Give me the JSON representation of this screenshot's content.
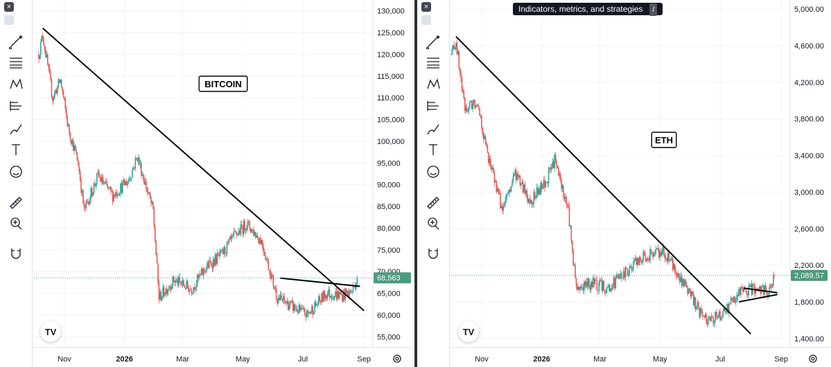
{
  "toolbar": {
    "close_glyph": "×",
    "tools": [
      "fullscreen-icon",
      "trend-line-icon",
      "fib-lines-icon",
      "pattern-icon",
      "forecast-icon",
      "brush-icon",
      "text-icon",
      "emoji-icon",
      "ruler-icon",
      "zoom-in-icon",
      "magnet-icon"
    ]
  },
  "tooltip": {
    "text": "Indicators, metrics, and strategies",
    "key": "/"
  },
  "colors": {
    "up": "#26a69a",
    "down": "#ef5350",
    "grid": "#f0f3fa",
    "axis_text": "#131722",
    "price_tag": "#4e9a7d"
  },
  "chart_data": [
    {
      "type": "candlestick",
      "annotation": "BITCOIN",
      "x_ticks": [
        "Nov",
        "2026",
        "Mar",
        "May",
        "Jul",
        "Sep"
      ],
      "y_ticks": [
        "130,000",
        "125,000",
        "120,000",
        "115,000",
        "110,000",
        "105,000",
        "100,000",
        "95,000",
        "90,000",
        "85,000",
        "80,000",
        "75,000",
        "70,000",
        "65,000",
        "60,000",
        "55,000"
      ],
      "ylim": [
        52500,
        132500
      ],
      "last_price": 68563,
      "last_price_label": "68,563",
      "series_keypoints": [
        [
          "2025-10-06",
          120000
        ],
        [
          "2025-10-10",
          124500
        ],
        [
          "2025-10-20",
          110000
        ],
        [
          "2025-10-28",
          114000
        ],
        [
          "2025-11-05",
          103000
        ],
        [
          "2025-11-15",
          95000
        ],
        [
          "2025-11-21",
          84000
        ],
        [
          "2025-12-05",
          92000
        ],
        [
          "2025-12-20",
          87500
        ],
        [
          "2026-01-05",
          91000
        ],
        [
          "2026-01-14",
          96500
        ],
        [
          "2026-01-30",
          84000
        ],
        [
          "2026-02-05",
          64000
        ],
        [
          "2026-02-20",
          68000
        ],
        [
          "2026-03-10",
          66000
        ],
        [
          "2026-03-25",
          71000
        ],
        [
          "2026-04-10",
          74000
        ],
        [
          "2026-04-22",
          78000
        ],
        [
          "2026-05-05",
          81000
        ],
        [
          "2026-05-20",
          77000
        ],
        [
          "2026-06-05",
          64000
        ],
        [
          "2026-06-20",
          62000
        ],
        [
          "2026-07-05",
          60000
        ],
        [
          "2026-07-25",
          65000
        ],
        [
          "2026-08-10",
          64500
        ],
        [
          "2026-08-20",
          65500
        ],
        [
          "2026-08-25",
          68563
        ]
      ],
      "trendlines": [
        {
          "from": [
            "2025-10-10",
            126000
          ],
          "to": [
            "2026-09-01",
            61000
          ]
        },
        {
          "from": [
            "2026-06-08",
            68500
          ],
          "to": [
            "2026-08-28",
            66600
          ]
        }
      ]
    },
    {
      "type": "candlestick",
      "annotation": "ETH",
      "x_ticks": [
        "Nov",
        "2026",
        "Mar",
        "May",
        "Jul",
        "Sep"
      ],
      "y_ticks": [
        "5,000.00",
        "4,600.00",
        "4,200.00",
        "3,800.00",
        "3,400.00",
        "3,000.00",
        "2,600.00",
        "2,200.00",
        "1,800.00",
        "1,400.00"
      ],
      "ylim": [
        1300,
        5100
      ],
      "last_price": 2089.57,
      "last_price_label": "2,089.57",
      "series_keypoints": [
        [
          "2025-10-01",
          4500
        ],
        [
          "2025-10-06",
          4650
        ],
        [
          "2025-10-10",
          4300
        ],
        [
          "2025-10-15",
          3900
        ],
        [
          "2025-10-28",
          4000
        ],
        [
          "2025-11-05",
          3500
        ],
        [
          "2025-11-15",
          3100
        ],
        [
          "2025-11-22",
          2800
        ],
        [
          "2025-12-05",
          3200
        ],
        [
          "2025-12-20",
          2900
        ],
        [
          "2026-01-05",
          3100
        ],
        [
          "2026-01-14",
          3350
        ],
        [
          "2026-01-28",
          2800
        ],
        [
          "2026-02-05",
          1950
        ],
        [
          "2026-02-20",
          2000
        ],
        [
          "2026-03-10",
          1950
        ],
        [
          "2026-03-25",
          2100
        ],
        [
          "2026-04-15",
          2300
        ],
        [
          "2026-05-05",
          2350
        ],
        [
          "2026-05-25",
          2000
        ],
        [
          "2026-06-10",
          1700
        ],
        [
          "2026-06-20",
          1600
        ],
        [
          "2026-07-05",
          1680
        ],
        [
          "2026-07-20",
          1900
        ],
        [
          "2026-08-05",
          1950
        ],
        [
          "2026-08-20",
          1930
        ],
        [
          "2026-08-25",
          2089.57
        ]
      ],
      "trendlines": [
        {
          "from": [
            "2025-10-06",
            4700
          ],
          "to": [
            "2026-08-01",
            1450
          ]
        },
        {
          "from": [
            "2026-07-25",
            1950
          ],
          "to": [
            "2026-08-28",
            1900
          ]
        },
        {
          "from": [
            "2026-07-20",
            1800
          ],
          "to": [
            "2026-08-28",
            1880
          ]
        }
      ]
    }
  ]
}
